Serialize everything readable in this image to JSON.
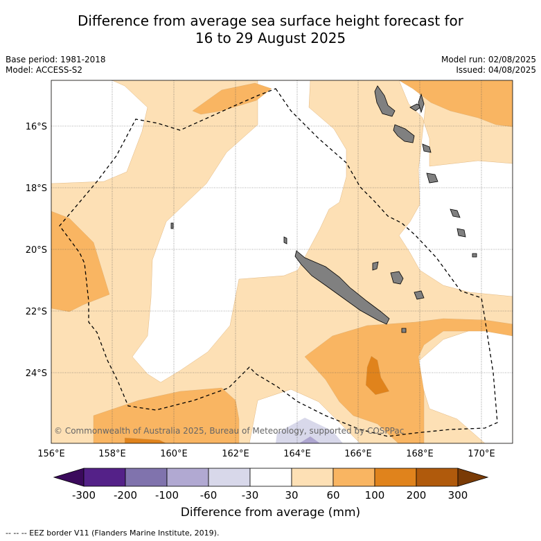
{
  "title_line1": "Difference from average sea surface height forecast for",
  "title_line2": "16 to 29 August 2025",
  "meta": {
    "base_period": "Base period: 1981-2018",
    "model": "Model: ACCESS-S2",
    "model_run": "Model run: 02/08/2025",
    "issued": "Issued: 04/08/2025"
  },
  "map": {
    "lat_labels": [
      "16°S",
      "18°S",
      "20°S",
      "22°S",
      "24°S"
    ],
    "lon_labels": [
      "156°E",
      "158°E",
      "160°E",
      "162°E",
      "164°E",
      "166°E",
      "168°E",
      "170°E"
    ],
    "copyright": "© Commonwealth of Australia 2025, Bureau of Meteorology, supported by COSPPac",
    "colors": {
      "c30_60": "#fde0b5",
      "c60_100": "#f9b562",
      "c100_200": "#e0831c",
      "cm30_m60": "#d8d8ea",
      "cm60_m100": "#aea6d0",
      "land": "#808080",
      "eez": "#000000"
    }
  },
  "colorbar": {
    "ticks": [
      "-300",
      "-200",
      "-100",
      "-60",
      "-30",
      "30",
      "60",
      "100",
      "200",
      "300"
    ],
    "colors": [
      "#3b0a5c",
      "#542188",
      "#8073ad",
      "#b1a9d2",
      "#d8d8ea",
      "#ffffff",
      "#fde0b5",
      "#f9b562",
      "#e0831c",
      "#b05a0c",
      "#7a3b06"
    ],
    "label": "Difference from average (mm)"
  },
  "footer": "--  --  -- EEZ border V11 (Flanders Marine Institute, 2019)."
}
